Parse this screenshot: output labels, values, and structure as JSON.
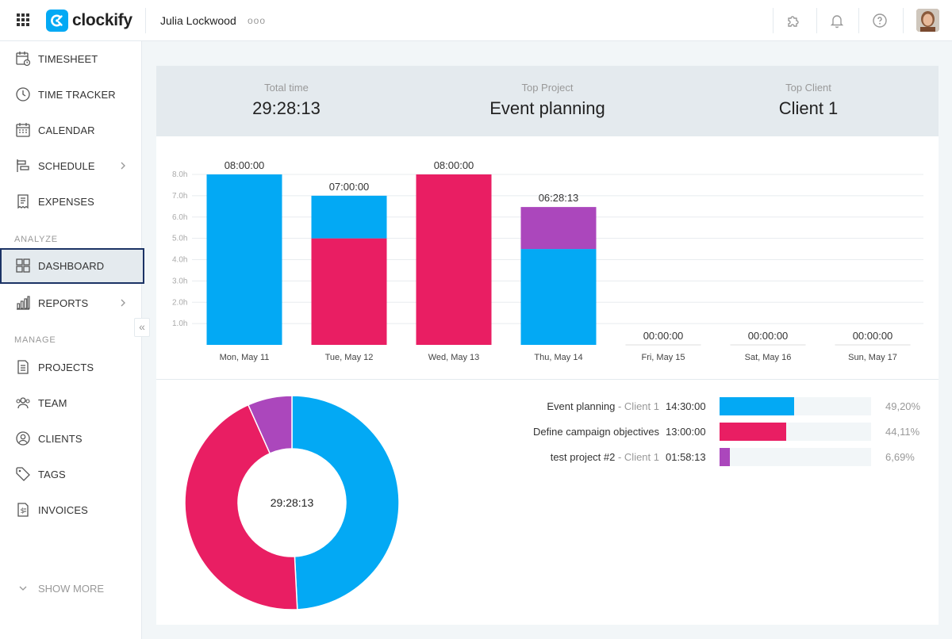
{
  "topbar": {
    "logo_text": "clockify",
    "workspace": "Julia Lockwood",
    "more": "ooo"
  },
  "sidebar": {
    "items": [
      {
        "label": "TIMESHEET",
        "icon": "timesheet-icon"
      },
      {
        "label": "TIME TRACKER",
        "icon": "clock-icon"
      },
      {
        "label": "CALENDAR",
        "icon": "calendar-icon"
      },
      {
        "label": "SCHEDULE",
        "icon": "schedule-icon"
      },
      {
        "label": "EXPENSES",
        "icon": "receipt-icon"
      },
      {
        "label": "DASHBOARD",
        "icon": "dashboard-icon"
      },
      {
        "label": "REPORTS",
        "icon": "bar-chart-icon"
      },
      {
        "label": "PROJECTS",
        "icon": "document-icon"
      },
      {
        "label": "TEAM",
        "icon": "team-icon"
      },
      {
        "label": "CLIENTS",
        "icon": "user-circle-icon"
      },
      {
        "label": "TAGS",
        "icon": "tag-icon"
      },
      {
        "label": "INVOICES",
        "icon": "invoice-icon"
      }
    ],
    "section_analyze": "ANALYZE",
    "section_manage": "MANAGE",
    "show_more": "SHOW MORE",
    "collapse": "«"
  },
  "summary": {
    "total_time_label": "Total time",
    "total_time": "29:28:13",
    "top_project_label": "Top Project",
    "top_project": "Event planning",
    "top_client_label": "Top Client",
    "top_client": "Client 1"
  },
  "colors": {
    "blue": "#03a9f4",
    "pink": "#e91e63",
    "purple": "#ab47bc"
  },
  "chart_data": {
    "type": "bar",
    "stacked": true,
    "categories": [
      "Mon, May 11",
      "Tue, May 12",
      "Wed, May 13",
      "Thu, May 14",
      "Fri, May 15",
      "Sat, May 16",
      "Sun, May 17"
    ],
    "totals": [
      "08:00:00",
      "07:00:00",
      "08:00:00",
      "06:28:13",
      "00:00:00",
      "00:00:00",
      "00:00:00"
    ],
    "series": [
      {
        "color": "#e91e63",
        "values": [
          0,
          5,
          8,
          0,
          0,
          0,
          0
        ]
      },
      {
        "color": "#03a9f4",
        "values": [
          8,
          2,
          0,
          4.5,
          0,
          0,
          0
        ]
      },
      {
        "color": "#ab47bc",
        "values": [
          0,
          0,
          0,
          1.97,
          0,
          0,
          0
        ]
      }
    ],
    "y_ticks": [
      "1.0h",
      "2.0h",
      "3.0h",
      "4.0h",
      "5.0h",
      "6.0h",
      "7.0h",
      "8.0h"
    ],
    "ylim": [
      0,
      8
    ]
  },
  "donut": {
    "center": "29:28:13",
    "slices": [
      {
        "color": "#03a9f4",
        "value": 49.2
      },
      {
        "color": "#e91e63",
        "value": 44.11
      },
      {
        "color": "#ab47bc",
        "value": 6.69
      }
    ]
  },
  "legend": [
    {
      "name": "Event planning",
      "client": " - Client 1",
      "time": "14:30:00",
      "pct": "49,20%",
      "fraction": 0.492,
      "color": "#03a9f4"
    },
    {
      "name": "Define campaign objectives",
      "client": "",
      "time": "13:00:00",
      "pct": "44,11%",
      "fraction": 0.4411,
      "color": "#e91e63"
    },
    {
      "name": "test project #2",
      "client": " - Client 1",
      "time": "01:58:13",
      "pct": "6,69%",
      "fraction": 0.0669,
      "color": "#ab47bc"
    }
  ]
}
